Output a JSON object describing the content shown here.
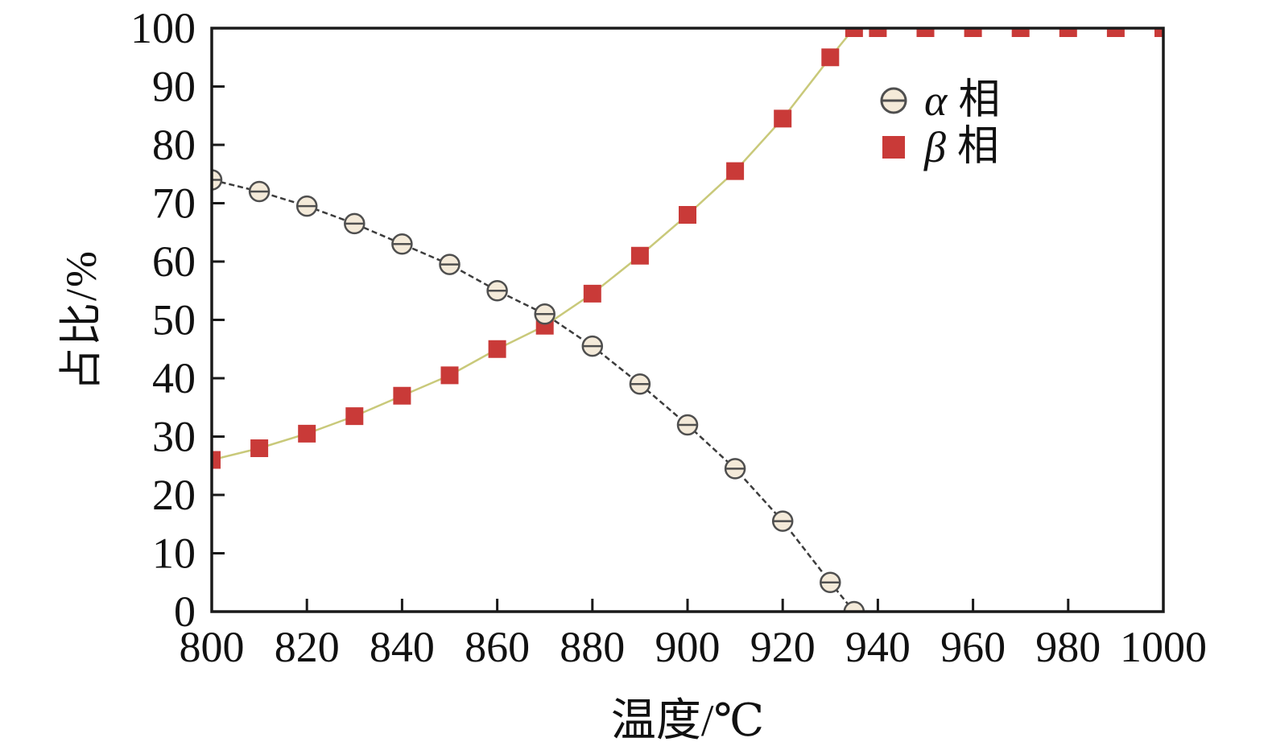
{
  "chart_data": {
    "type": "line",
    "title": "",
    "xlabel": "温度/℃",
    "ylabel": "占比/%",
    "xlim": [
      800,
      1000
    ],
    "ylim": [
      0,
      100
    ],
    "x_ticks": [
      800,
      820,
      840,
      860,
      880,
      900,
      920,
      940,
      960,
      980,
      1000
    ],
    "y_ticks": [
      0,
      10,
      20,
      30,
      40,
      50,
      60,
      70,
      80,
      90,
      100
    ],
    "grid": false,
    "legend_position": "inside-upper-right",
    "axis_color": "#1a1a1a",
    "series": [
      {
        "name": "β 相",
        "marker": "square",
        "marker_color": "#c93a38",
        "line_color": "#c9c97a",
        "x": [
          800,
          810,
          820,
          830,
          840,
          850,
          860,
          870,
          880,
          890,
          900,
          910,
          920,
          930,
          935,
          940,
          950,
          960,
          970,
          980,
          990,
          1000
        ],
        "y": [
          26,
          28,
          30.5,
          33.5,
          37,
          40.5,
          45,
          49,
          54.5,
          61,
          68,
          75.5,
          84.5,
          95,
          100,
          100,
          100,
          100,
          100,
          100,
          100,
          100
        ]
      },
      {
        "name": "α 相",
        "marker": "circle-hline",
        "marker_color": "#f4ead9",
        "marker_stroke": "#4f4f4f",
        "line_color": "#3c3c3c",
        "x": [
          800,
          810,
          820,
          830,
          840,
          850,
          860,
          870,
          880,
          890,
          900,
          910,
          920,
          930,
          935
        ],
        "y": [
          74,
          72,
          69.5,
          66.5,
          63,
          59.5,
          55,
          51,
          45.5,
          39,
          32,
          24.5,
          15.5,
          5,
          0
        ]
      }
    ]
  },
  "legend": {
    "items": [
      {
        "symbol": "α",
        "text": "相"
      },
      {
        "symbol": "β",
        "text": "相"
      }
    ]
  }
}
